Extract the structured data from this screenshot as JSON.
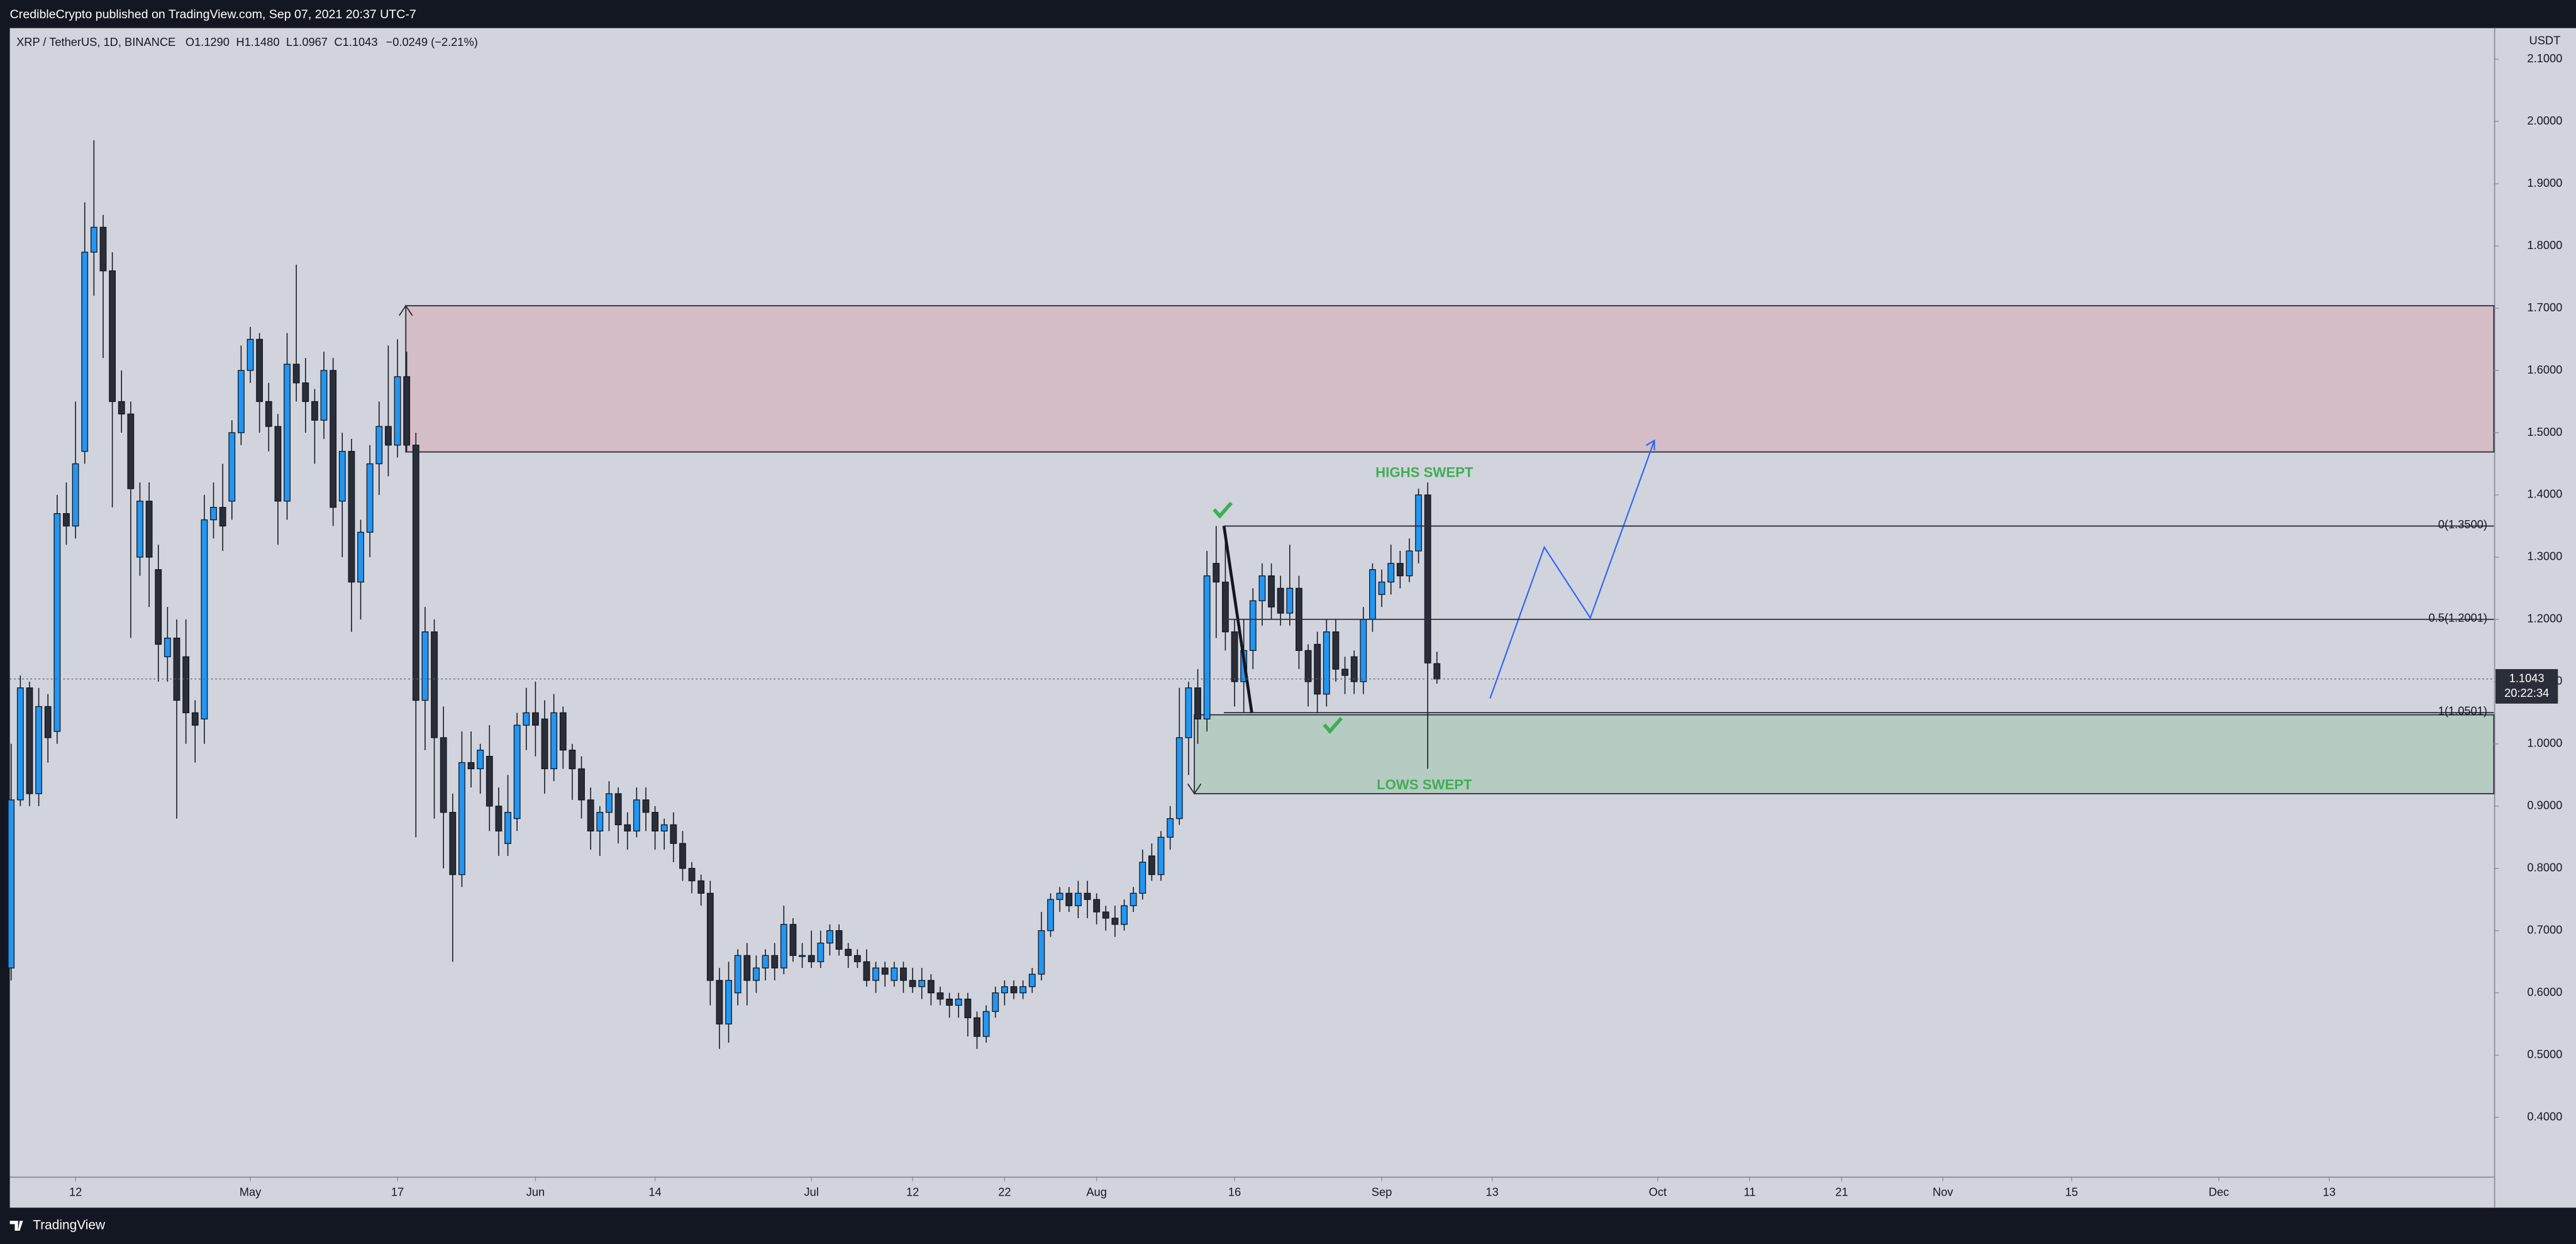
{
  "header": {
    "publisher": "CredibleCrypto published on TradingView.com, Sep 07, 2021 20:37 UTC-7"
  },
  "footer": {
    "brand": "TradingView"
  },
  "chart_data": {
    "type": "candlestick",
    "symbol": "XRP / TetherUS, 1D, BINANCE",
    "ohlc_labels": [
      "O1.1290",
      "H1.1480",
      "L1.0967",
      "C1.1043"
    ],
    "change_label": "−0.0249 (−2.21%)",
    "y_axis_unit": "USDT",
    "up_color": "#2196f3",
    "down_color": "#2a2e39",
    "x": [
      4,
      5,
      6,
      7,
      8,
      9,
      10,
      11,
      12,
      13,
      14,
      15,
      16,
      17,
      18,
      19,
      20,
      21,
      22,
      23,
      24,
      25,
      26,
      27,
      28,
      29,
      30,
      31,
      32,
      33,
      34,
      35,
      36,
      37,
      38,
      39,
      40,
      41,
      42,
      43,
      44,
      45,
      46,
      47,
      48,
      49,
      50,
      51,
      52,
      53,
      54,
      55,
      56,
      57,
      58,
      59,
      60,
      61,
      62,
      63,
      64,
      65,
      66,
      67,
      68,
      69,
      70,
      71,
      72,
      73,
      74,
      75,
      76,
      77,
      78,
      79,
      80,
      81,
      82,
      83,
      84,
      85,
      86,
      87,
      88,
      89,
      90,
      91,
      92,
      93,
      94,
      95,
      96,
      97,
      98,
      99,
      100,
      101,
      102,
      103,
      104,
      105,
      106,
      107,
      108,
      109,
      110,
      111,
      112,
      113,
      114,
      115,
      116,
      117,
      118,
      119,
      120,
      121,
      122,
      123,
      124,
      125,
      126,
      127,
      128,
      129,
      130,
      131,
      132,
      133,
      134,
      135,
      136,
      137,
      138,
      139,
      140,
      141,
      142,
      143,
      144,
      145,
      146,
      147,
      148,
      149,
      150,
      151,
      152,
      153,
      154,
      155,
      156,
      157,
      158,
      159
    ],
    "open": [
      0.64,
      0.91,
      1.09,
      0.92,
      1.06,
      1.02,
      1.37,
      1.35,
      1.47,
      1.79,
      1.83,
      1.76,
      1.55,
      1.53,
      1.3,
      1.39,
      1.28,
      1.14,
      1.17,
      1.14,
      1.05,
      1.04,
      1.36,
      1.38,
      1.39,
      1.5,
      1.6,
      1.65,
      1.55,
      1.51,
      1.39,
      1.61,
      1.58,
      1.55,
      1.52,
      1.6,
      1.39,
      1.47,
      1.26,
      1.34,
      1.45,
      1.51,
      1.48,
      1.59,
      1.48,
      1.07,
      1.18,
      1.01,
      0.89,
      0.79,
      0.97,
      0.96,
      0.98,
      0.9,
      0.84,
      0.88,
      1.03,
      1.05,
      1.04,
      0.96,
      1.05,
      0.99,
      0.96,
      0.91,
      0.86,
      0.89,
      0.92,
      0.87,
      0.86,
      0.91,
      0.89,
      0.86,
      0.87,
      0.84,
      0.8,
      0.78,
      0.76,
      0.62,
      0.55,
      0.6,
      0.66,
      0.62,
      0.64,
      0.66,
      0.64,
      0.71,
      0.66,
      0.66,
      0.65,
      0.68,
      0.7,
      0.67,
      0.66,
      0.65,
      0.62,
      0.64,
      0.62,
      0.64,
      0.62,
      0.61,
      0.62,
      0.6,
      0.59,
      0.58,
      0.59,
      0.56,
      0.53,
      0.57,
      0.6,
      0.61,
      0.6,
      0.61,
      0.63,
      0.7,
      0.75,
      0.76,
      0.74,
      0.76,
      0.75,
      0.73,
      0.72,
      0.71,
      0.74,
      0.76,
      0.82,
      0.79,
      0.85,
      0.88,
      1.01,
      1.09,
      1.04,
      1.29,
      1.26,
      1.18,
      1.1,
      1.15,
      1.23,
      1.27,
      1.25,
      1.21,
      1.25,
      1.15,
      1.16,
      1.08,
      1.18,
      1.12,
      1.14,
      1.1,
      1.2,
      1.24,
      1.26,
      1.29,
      1.27,
      1.31,
      1.4,
      1.129
    ],
    "high": [
      1.0,
      1.11,
      1.1,
      1.09,
      1.08,
      1.4,
      1.42,
      1.55,
      1.87,
      1.97,
      1.85,
      1.79,
      1.6,
      1.55,
      1.42,
      1.42,
      1.32,
      1.22,
      1.2,
      1.2,
      1.07,
      1.4,
      1.42,
      1.45,
      1.52,
      1.64,
      1.67,
      1.66,
      1.58,
      1.53,
      1.66,
      1.77,
      1.62,
      1.57,
      1.63,
      1.62,
      1.5,
      1.49,
      1.36,
      1.48,
      1.55,
      1.64,
      1.65,
      1.63,
      1.5,
      1.22,
      1.2,
      1.06,
      0.92,
      1.02,
      1.02,
      1.0,
      1.03,
      0.93,
      0.95,
      1.05,
      1.09,
      1.1,
      1.07,
      1.08,
      1.06,
      1.0,
      0.98,
      0.93,
      0.9,
      0.94,
      0.93,
      0.89,
      0.93,
      0.93,
      0.9,
      0.88,
      0.89,
      0.86,
      0.81,
      0.79,
      0.78,
      0.64,
      0.65,
      0.67,
      0.68,
      0.66,
      0.67,
      0.68,
      0.74,
      0.72,
      0.68,
      0.7,
      0.7,
      0.71,
      0.71,
      0.68,
      0.67,
      0.67,
      0.65,
      0.65,
      0.65,
      0.65,
      0.64,
      0.64,
      0.63,
      0.61,
      0.6,
      0.6,
      0.6,
      0.57,
      0.58,
      0.61,
      0.62,
      0.62,
      0.62,
      0.64,
      0.73,
      0.76,
      0.77,
      0.77,
      0.78,
      0.78,
      0.76,
      0.74,
      0.74,
      0.75,
      0.77,
      0.83,
      0.84,
      0.86,
      0.9,
      1.09,
      1.1,
      1.12,
      1.31,
      1.35,
      1.33,
      1.2,
      1.2,
      1.25,
      1.29,
      1.29,
      1.27,
      1.32,
      1.27,
      1.16,
      1.18,
      1.2,
      1.2,
      1.14,
      1.15,
      1.22,
      1.29,
      1.28,
      1.32,
      1.31,
      1.33,
      1.41,
      1.42,
      1.148
    ],
    "low": [
      0.62,
      0.9,
      0.9,
      0.9,
      0.97,
      1.0,
      1.32,
      1.33,
      1.45,
      1.72,
      1.62,
      1.38,
      1.5,
      1.17,
      1.27,
      1.22,
      1.1,
      1.1,
      0.88,
      1.0,
      0.97,
      1.0,
      1.33,
      1.31,
      1.36,
      1.48,
      1.58,
      1.5,
      1.47,
      1.32,
      1.36,
      1.55,
      1.5,
      1.45,
      1.49,
      1.35,
      1.3,
      1.18,
      1.2,
      1.3,
      1.4,
      1.43,
      1.46,
      1.47,
      0.85,
      0.99,
      0.88,
      0.8,
      0.65,
      0.77,
      0.93,
      0.92,
      0.86,
      0.82,
      0.82,
      0.86,
      0.99,
      0.98,
      0.92,
      0.94,
      0.96,
      0.91,
      0.88,
      0.83,
      0.82,
      0.86,
      0.84,
      0.83,
      0.85,
      0.86,
      0.83,
      0.83,
      0.81,
      0.78,
      0.76,
      0.74,
      0.58,
      0.51,
      0.52,
      0.58,
      0.58,
      0.6,
      0.62,
      0.62,
      0.63,
      0.65,
      0.64,
      0.64,
      0.64,
      0.66,
      0.66,
      0.64,
      0.64,
      0.61,
      0.6,
      0.61,
      0.61,
      0.6,
      0.6,
      0.59,
      0.58,
      0.58,
      0.56,
      0.56,
      0.53,
      0.51,
      0.52,
      0.56,
      0.58,
      0.59,
      0.59,
      0.6,
      0.62,
      0.69,
      0.73,
      0.73,
      0.72,
      0.72,
      0.71,
      0.7,
      0.69,
      0.7,
      0.73,
      0.75,
      0.78,
      0.78,
      0.83,
      0.87,
      0.95,
      1.0,
      1.02,
      1.17,
      1.15,
      1.06,
      1.05,
      1.12,
      1.19,
      1.2,
      1.19,
      1.19,
      1.12,
      1.06,
      1.05,
      1.06,
      1.1,
      1.08,
      1.08,
      1.08,
      1.18,
      1.22,
      1.24,
      1.25,
      1.26,
      1.29,
      0.96,
      1.0967
    ],
    "close": [
      0.91,
      1.09,
      0.92,
      1.06,
      1.01,
      1.37,
      1.35,
      1.45,
      1.79,
      1.83,
      1.76,
      1.55,
      1.53,
      1.41,
      1.39,
      1.3,
      1.16,
      1.17,
      1.07,
      1.05,
      1.03,
      1.36,
      1.38,
      1.35,
      1.5,
      1.6,
      1.65,
      1.55,
      1.51,
      1.39,
      1.61,
      1.58,
      1.55,
      1.52,
      1.6,
      1.38,
      1.47,
      1.26,
      1.34,
      1.45,
      1.51,
      1.48,
      1.59,
      1.48,
      1.07,
      1.18,
      1.01,
      0.89,
      0.79,
      0.97,
      0.96,
      0.99,
      0.9,
      0.86,
      0.89,
      1.03,
      1.05,
      1.03,
      0.96,
      1.05,
      0.99,
      0.96,
      0.91,
      0.86,
      0.89,
      0.92,
      0.87,
      0.86,
      0.91,
      0.89,
      0.86,
      0.87,
      0.84,
      0.8,
      0.78,
      0.76,
      0.62,
      0.55,
      0.62,
      0.66,
      0.62,
      0.64,
      0.66,
      0.64,
      0.71,
      0.66,
      0.66,
      0.65,
      0.68,
      0.7,
      0.67,
      0.66,
      0.65,
      0.62,
      0.64,
      0.63,
      0.64,
      0.62,
      0.61,
      0.62,
      0.6,
      0.59,
      0.58,
      0.59,
      0.56,
      0.53,
      0.57,
      0.6,
      0.61,
      0.6,
      0.61,
      0.63,
      0.7,
      0.75,
      0.76,
      0.74,
      0.76,
      0.75,
      0.73,
      0.72,
      0.71,
      0.74,
      0.76,
      0.81,
      0.79,
      0.85,
      0.88,
      1.01,
      1.09,
      1.04,
      1.27,
      1.26,
      1.18,
      1.1,
      1.15,
      1.23,
      1.27,
      1.22,
      1.21,
      1.25,
      1.15,
      1.1,
      1.08,
      1.18,
      1.12,
      1.11,
      1.1,
      1.2,
      1.28,
      1.26,
      1.29,
      1.27,
      1.31,
      1.4,
      1.13,
      1.1043
    ],
    "xlim": [
      3.86,
      273.9
    ],
    "xticks": [
      {
        "value": 11,
        "label": "12"
      },
      {
        "value": 30,
        "label": "May"
      },
      {
        "value": 46,
        "label": "17"
      },
      {
        "value": 61,
        "label": "Jun"
      },
      {
        "value": 74,
        "label": "14"
      },
      {
        "value": 91,
        "label": "Jul"
      },
      {
        "value": 102,
        "label": "12"
      },
      {
        "value": 112,
        "label": "22"
      },
      {
        "value": 122,
        "label": "Aug"
      },
      {
        "value": 137,
        "label": "16"
      },
      {
        "value": 153,
        "label": "Sep"
      },
      {
        "value": 165,
        "label": "13"
      },
      {
        "value": 183,
        "label": "Oct"
      },
      {
        "value": 193,
        "label": "11"
      },
      {
        "value": 203,
        "label": "21"
      },
      {
        "value": 214,
        "label": "Nov"
      },
      {
        "value": 228,
        "label": "15"
      },
      {
        "value": 244,
        "label": "Dec"
      },
      {
        "value": 256,
        "label": "13"
      }
    ],
    "ylim": [
      0.305,
      2.15
    ],
    "yticks": [
      {
        "value": 0.4,
        "label": "0.4000"
      },
      {
        "value": 0.5,
        "label": "0.5000"
      },
      {
        "value": 0.6,
        "label": "0.6000"
      },
      {
        "value": 0.7,
        "label": "0.7000"
      },
      {
        "value": 0.8,
        "label": "0.8000"
      },
      {
        "value": 0.9,
        "label": "0.9000"
      },
      {
        "value": 1.0,
        "label": "1.0000"
      },
      {
        "value": 1.1,
        "label": "1.1000"
      },
      {
        "value": 1.2,
        "label": "1.2000"
      },
      {
        "value": 1.3,
        "label": "1.3000"
      },
      {
        "value": 1.4,
        "label": "1.4000"
      },
      {
        "value": 1.5,
        "label": "1.5000"
      },
      {
        "value": 1.6,
        "label": "1.6000"
      },
      {
        "value": 1.7,
        "label": "1.7000"
      },
      {
        "value": 1.8,
        "label": "1.8000"
      },
      {
        "value": 1.9,
        "label": "1.9000"
      },
      {
        "value": 2.0,
        "label": "2.0000"
      },
      {
        "value": 2.1,
        "label": "2.1000"
      }
    ],
    "grid": false,
    "last_price": {
      "value": 1.1043,
      "label": "1.1043"
    },
    "countdown": "20:22:34",
    "levels": [
      {
        "value": 1.35,
        "label": "0(1.3500)"
      },
      {
        "value": 1.2001,
        "label": "0.5(1.2001)"
      },
      {
        "value": 1.0501,
        "label": "1(1.0501)"
      }
    ],
    "annotations": [
      "HIGHS SWEPT",
      "LOWS SWEPT"
    ]
  }
}
